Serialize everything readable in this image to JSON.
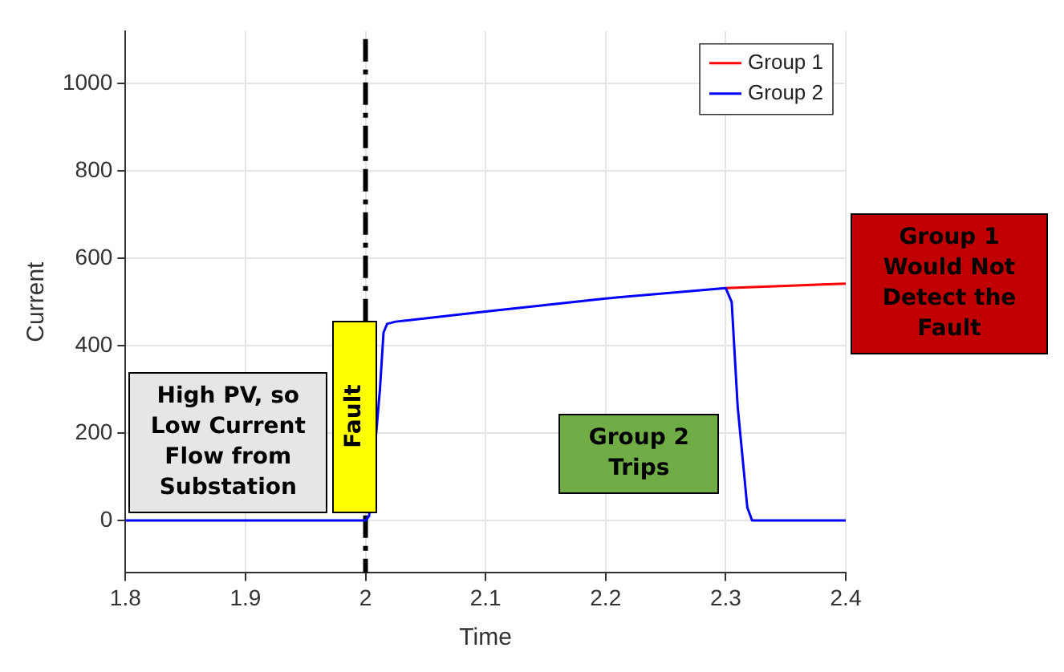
{
  "chart_data": {
    "type": "line",
    "xlabel": "Time",
    "ylabel": "Current",
    "xlim": [
      1.8,
      2.4
    ],
    "xticks": [
      1.8,
      1.9,
      2,
      2.1,
      2.2,
      2.3,
      2.4
    ],
    "ylim": [
      -120,
      1120
    ],
    "yticks": [
      0,
      200,
      400,
      600,
      800,
      1000
    ],
    "grid": true,
    "legend": "top right",
    "marker": "none",
    "line_style": "solid",
    "series": [
      {
        "name": "Group 1",
        "color": "#ff0000",
        "x": [
          2.3,
          2.35,
          2.4
        ],
        "values": [
          532,
          537,
          542
        ]
      },
      {
        "name": "Group 2",
        "color": "#0000ff",
        "x": [
          1.8,
          2.0,
          2.003,
          2.012,
          2.015,
          2.018,
          2.025,
          2.1,
          2.2,
          2.3,
          2.305,
          2.31,
          2.318,
          2.322,
          2.4
        ],
        "values": [
          0,
          0,
          10,
          300,
          430,
          450,
          455,
          478,
          508,
          532,
          500,
          260,
          30,
          0,
          0
        ]
      }
    ],
    "ref_lines": [
      {
        "axis": "x",
        "value": 2,
        "color": "#000000",
        "line_style": "dashdot"
      }
    ],
    "annotations": [
      "High PV, so Low Current Flow from Substation",
      "Fault",
      "Group 2 Trips",
      "Group 1 Would Not Detect the Fault"
    ]
  }
}
